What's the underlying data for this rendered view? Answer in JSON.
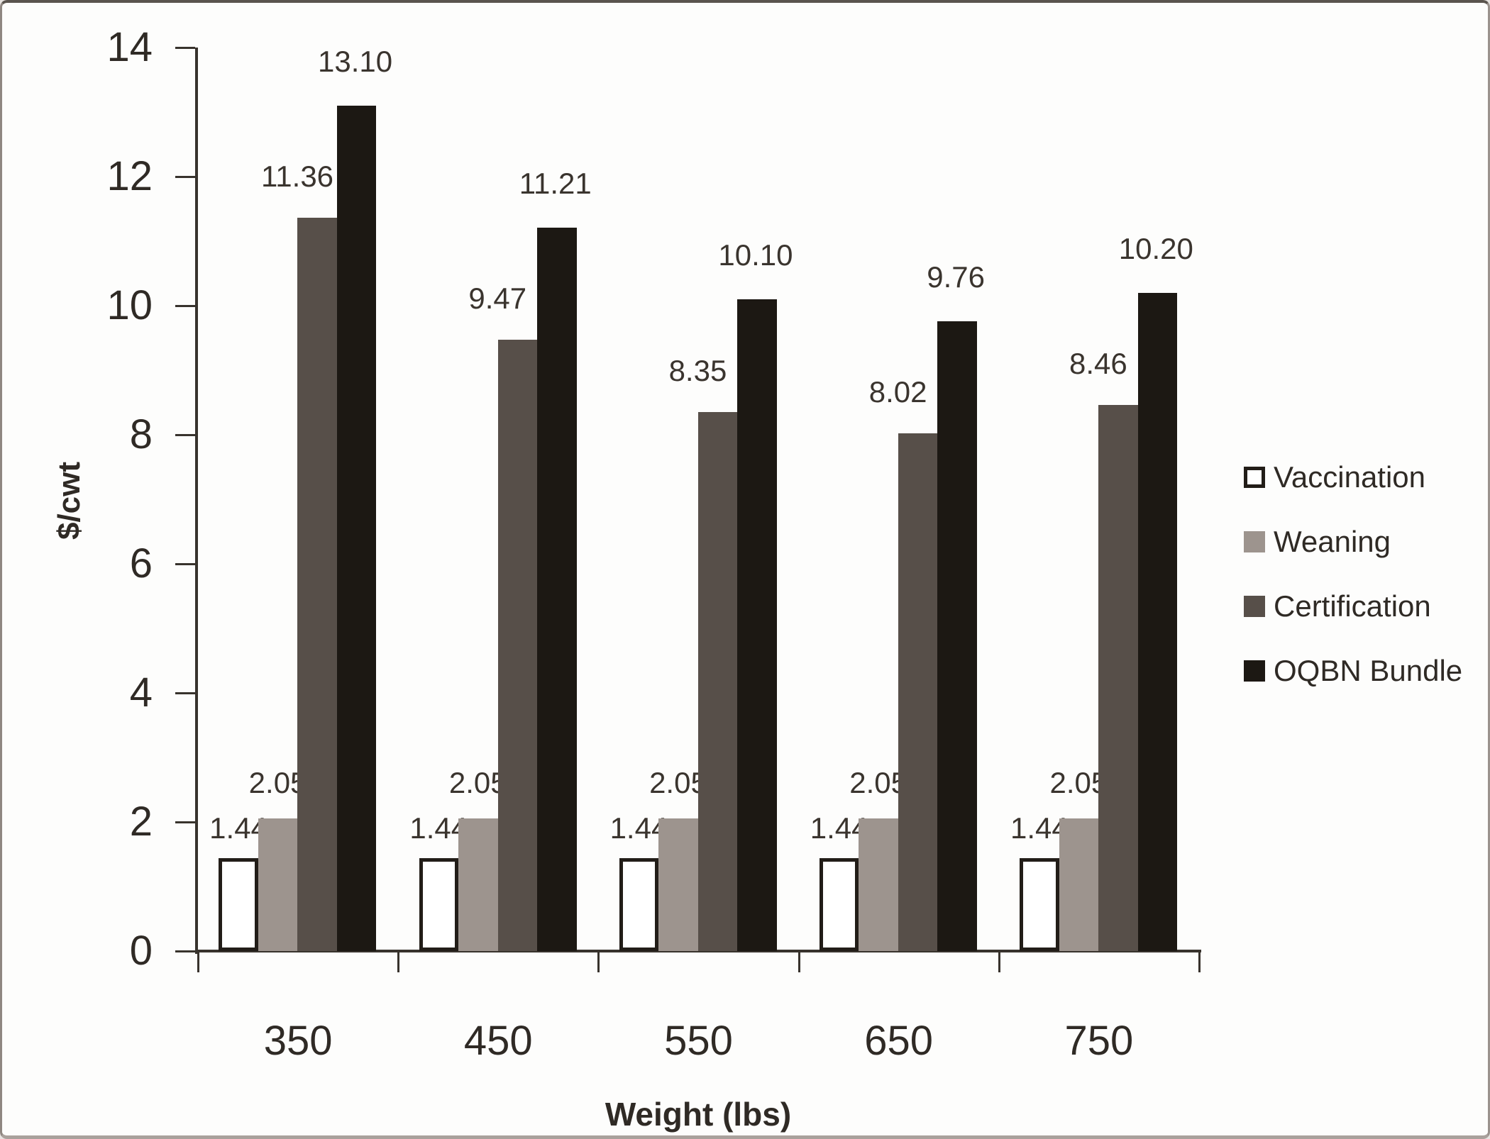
{
  "chart_data": {
    "type": "bar",
    "title": "",
    "xlabel": "Weight (lbs)",
    "ylabel": "$/cwt",
    "categories": [
      "350",
      "450",
      "550",
      "650",
      "750"
    ],
    "series": [
      {
        "name": "Vaccination",
        "color": "#ffffff",
        "border_color": "#221d18",
        "values": [
          1.44,
          1.44,
          1.44,
          1.44,
          1.44
        ],
        "labels": [
          "1.44",
          "1.44",
          "1.44",
          "1.44",
          "1.44"
        ]
      },
      {
        "name": "Weaning",
        "color": "#9d948e",
        "values": [
          2.05,
          2.05,
          2.05,
          2.05,
          2.05
        ],
        "labels": [
          "2.05",
          "2.05",
          "2.05",
          "2.05",
          "2.05"
        ]
      },
      {
        "name": "Certification",
        "color": "#574f49",
        "values": [
          11.36,
          9.47,
          8.35,
          8.02,
          8.46
        ],
        "labels": [
          "11.36",
          "9.47",
          "8.35",
          "8.02",
          "8.46"
        ]
      },
      {
        "name": "OQBN Bundle",
        "color": "#1c1813",
        "values": [
          13.1,
          11.21,
          10.1,
          9.76,
          10.2
        ],
        "labels": [
          "13.10",
          "11.21",
          "10.10",
          "9.76",
          "10.20"
        ]
      }
    ],
    "ylim": [
      0,
      14
    ],
    "ytick_step": 2,
    "ytick_labels": [
      "0",
      "2",
      "4",
      "6",
      "8",
      "10",
      "12",
      "14"
    ],
    "grid": false,
    "legend_position": "right",
    "axis_color": "#38332d",
    "text_color": "#2f2a25"
  }
}
